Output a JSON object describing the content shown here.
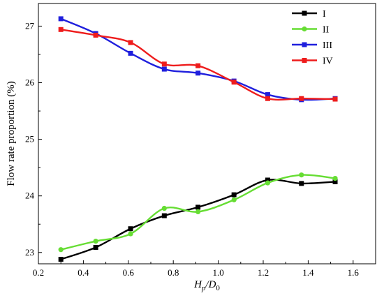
{
  "chart_data": {
    "type": "line",
    "xlabel_main": "H",
    "xlabel_sub1": "p",
    "xlabel_sep": "/D",
    "xlabel_sub2": "0",
    "ylabel": "Flow rate proportion (%)",
    "xlim": [
      0.2,
      1.7
    ],
    "ylim": [
      22.8,
      27.4
    ],
    "xticks": [
      "0.2",
      "0.4",
      "0.6",
      "0.8",
      "1.0",
      "1.2",
      "1.4",
      "1.6"
    ],
    "yticks": [
      "23",
      "24",
      "25",
      "26",
      "27"
    ],
    "x": [
      0.3,
      0.455,
      0.61,
      0.76,
      0.91,
      1.07,
      1.22,
      1.37,
      1.52
    ],
    "legend_position": "top-right",
    "series": [
      {
        "name": "I",
        "color": "#000000",
        "marker": "square",
        "values": [
          22.88,
          23.09,
          23.42,
          23.65,
          23.8,
          24.02,
          24.28,
          24.22,
          24.25
        ]
      },
      {
        "name": "II",
        "color": "#66dd33",
        "marker": "circle",
        "values": [
          23.05,
          23.2,
          23.33,
          23.78,
          23.72,
          23.93,
          24.23,
          24.37,
          24.31
        ]
      },
      {
        "name": "III",
        "color": "#1f1fdd",
        "marker": "square",
        "values": [
          27.13,
          26.87,
          26.52,
          26.24,
          26.17,
          26.03,
          25.79,
          25.7,
          25.72
        ]
      },
      {
        "name": "IV",
        "color": "#ee1c1c",
        "marker": "square",
        "values": [
          26.94,
          26.84,
          26.71,
          26.33,
          26.3,
          26.01,
          25.72,
          25.72,
          25.71
        ]
      }
    ]
  }
}
